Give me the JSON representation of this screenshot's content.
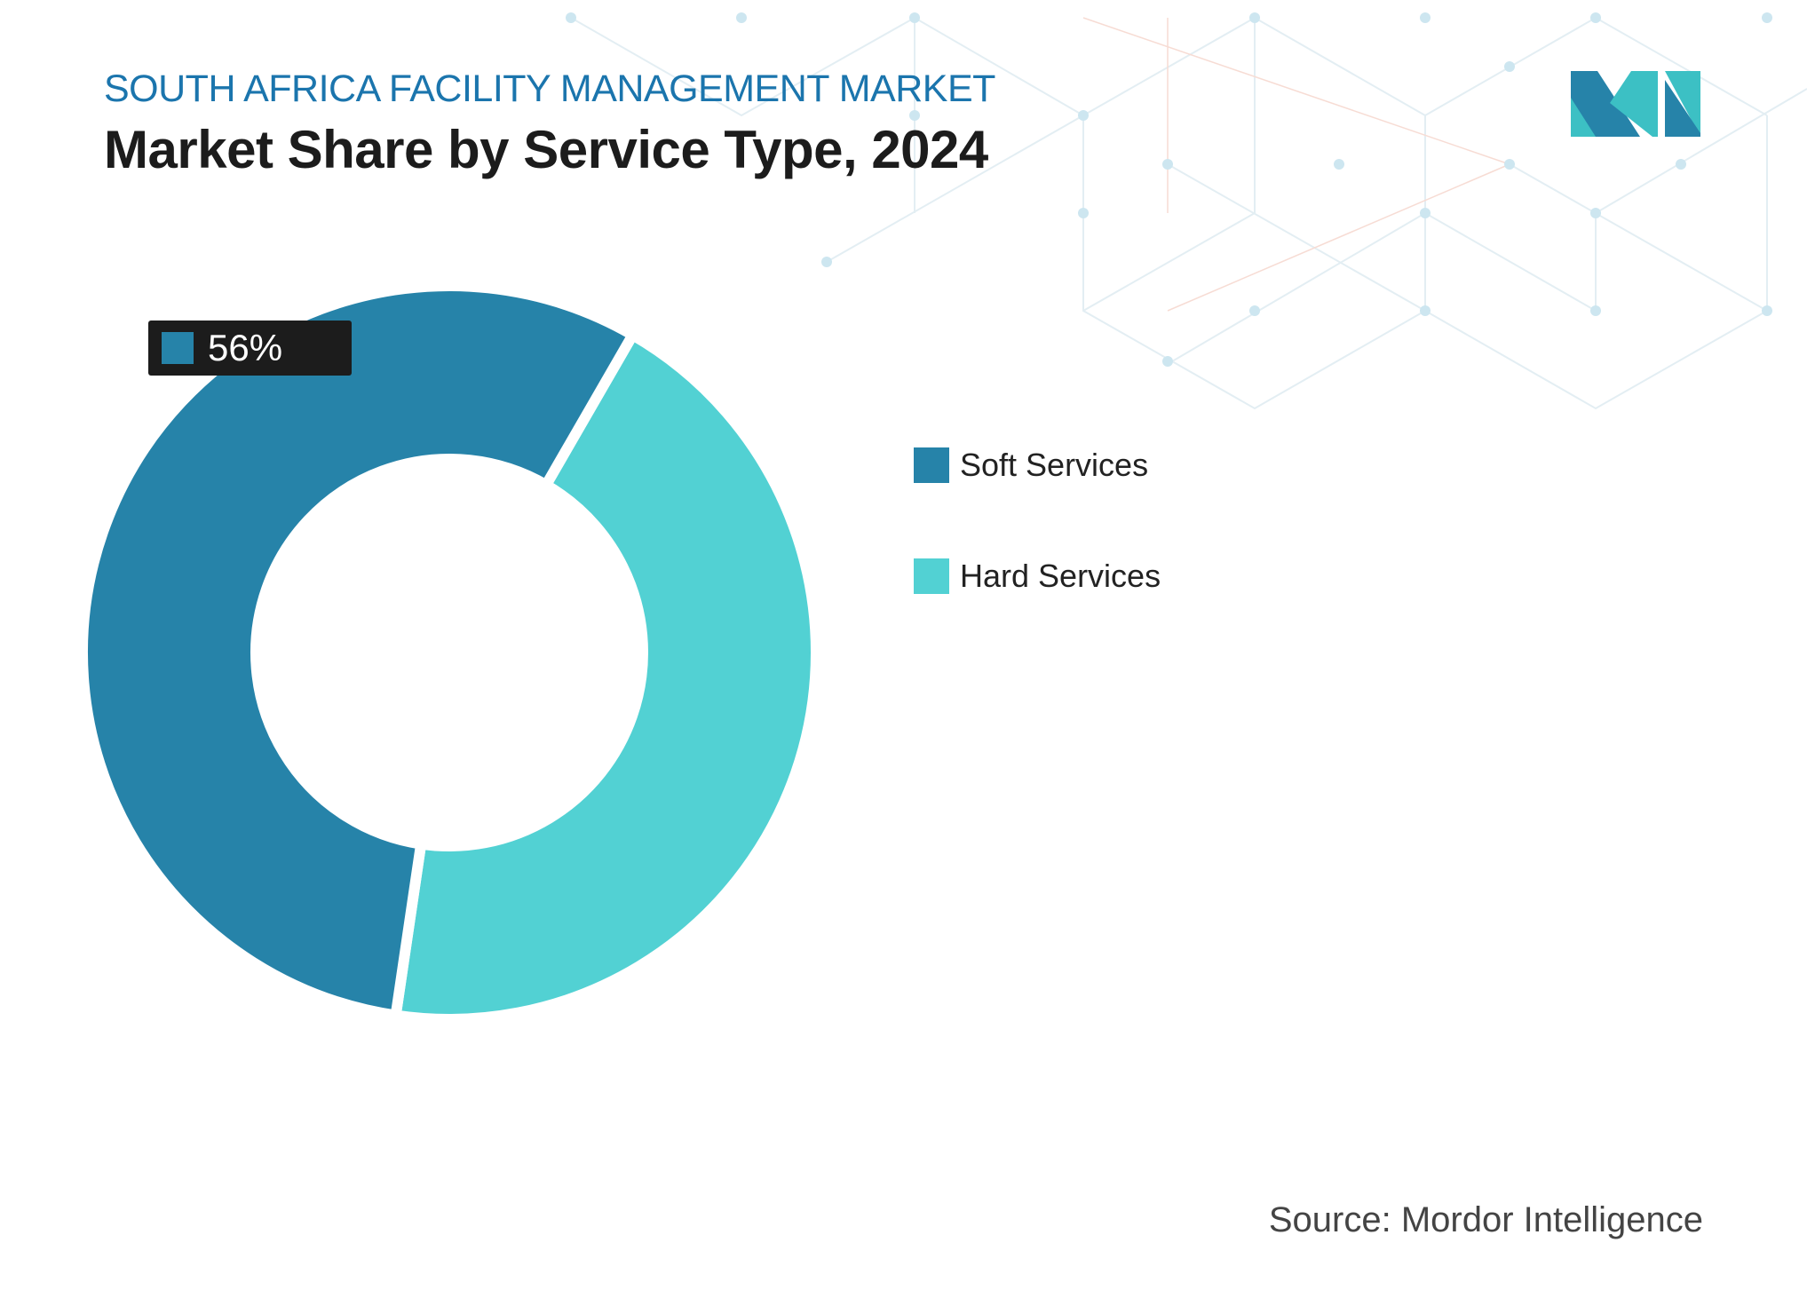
{
  "header": {
    "kicker": "SOUTH AFRICA FACILITY MANAGEMENT MARKET",
    "title": "Market Share by Service Type, 2024"
  },
  "chart_data": {
    "type": "pie",
    "variant": "donut",
    "title": "Market Share by Service Type, 2024",
    "categories": [
      "Soft Services",
      "Hard Services"
    ],
    "values": [
      56,
      44
    ],
    "unit": "%",
    "colors": [
      "#2683a9",
      "#52d1d3"
    ],
    "data_labels": [
      {
        "category": "Soft Services",
        "text": "56%"
      }
    ],
    "legend": "right"
  },
  "source": "Source: Mordor Intelligence",
  "logo": {
    "text": "Mordor Intelligence",
    "colors": [
      "#2683a9",
      "#3cc0c4"
    ]
  }
}
